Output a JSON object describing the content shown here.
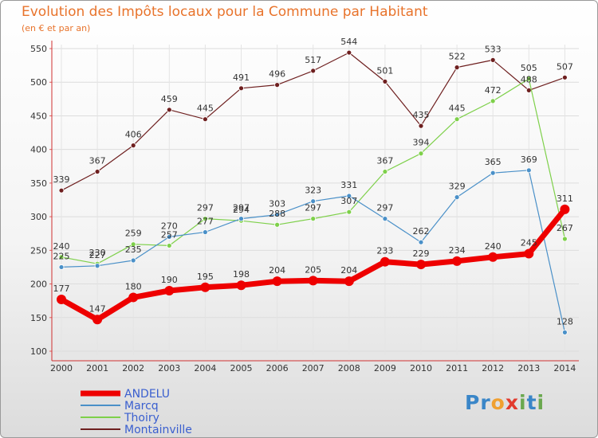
{
  "header": {
    "title": "Evolution des Impôts locaux pour la Commune par Habitant",
    "subtitle": "(en € et par an)"
  },
  "logo": {
    "text": "Proxiti",
    "letters": [
      {
        "ch": "P",
        "color": "#3a86c8"
      },
      {
        "ch": "r",
        "color": "#3a86c8"
      },
      {
        "ch": "o",
        "color": "#f0a030"
      },
      {
        "ch": "x",
        "color": "#e23a2e"
      },
      {
        "ch": "i",
        "color": "#6aa84f"
      },
      {
        "ch": "t",
        "color": "#3a86c8"
      },
      {
        "ch": "i",
        "color": "#6aa84f"
      }
    ]
  },
  "chart_data": {
    "type": "line",
    "title": "Evolution des Impôts locaux pour la Commune par Habitant",
    "subtitle": "(en € et par an)",
    "xlabel": "",
    "ylabel": "",
    "x": [
      2000,
      2001,
      2002,
      2003,
      2004,
      2005,
      2006,
      2007,
      2008,
      2009,
      2010,
      2011,
      2012,
      2013,
      2014
    ],
    "ylim": [
      100,
      550
    ],
    "yticks": [
      100,
      150,
      200,
      250,
      300,
      350,
      400,
      450,
      500,
      550
    ],
    "grid": true,
    "legend_position": "bottom-left",
    "series": [
      {
        "name": "ANDELU",
        "color": "#ee0000",
        "values": [
          177,
          147,
          180,
          190,
          195,
          198,
          204,
          205,
          204,
          233,
          229,
          234,
          240,
          245,
          311
        ]
      },
      {
        "name": "Marcq",
        "color": "#4a90c8",
        "values": [
          225,
          227,
          235,
          270,
          277,
          297,
          303,
          323,
          331,
          297,
          262,
          329,
          365,
          369,
          128
        ]
      },
      {
        "name": "Thoiry",
        "color": "#7ed04a",
        "values": [
          240,
          230,
          259,
          257,
          297,
          294,
          288,
          297,
          307,
          367,
          394,
          445,
          472,
          505,
          267
        ]
      },
      {
        "name": "Montainville",
        "color": "#6e1f1f",
        "values": [
          339,
          367,
          406,
          459,
          445,
          491,
          496,
          517,
          544,
          501,
          435,
          522,
          533,
          488,
          507
        ]
      }
    ]
  }
}
